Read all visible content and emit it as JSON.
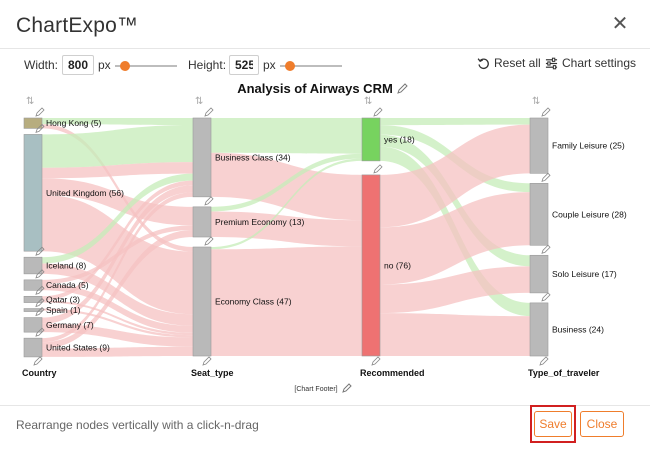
{
  "app": {
    "title": "ChartExpo™"
  },
  "toolbar": {
    "width_label": "Width:",
    "width_value": "800",
    "width_unit": "px",
    "height_label": "Height:",
    "height_value": "525",
    "height_unit": "px",
    "reset_label": "Reset all",
    "settings_label": "Chart settings"
  },
  "chart_data": {
    "type": "sankey",
    "title": "Analysis of Airways CRM",
    "footer": "[Chart Footer]",
    "columns": [
      {
        "name": "Country",
        "nodes": [
          {
            "label": "Hong Kong (5)",
            "value": 5,
            "color": "#b7ad7f"
          },
          {
            "label": "United Kingdom (56)",
            "value": 56,
            "color": "#a8bfc2"
          },
          {
            "label": "Iceland (8)",
            "value": 8,
            "color": "#b9b9b9"
          },
          {
            "label": "Canada (5)",
            "value": 5,
            "color": "#b9b9b9"
          },
          {
            "label": "Qatar (3)",
            "value": 3,
            "color": "#b9b9b9"
          },
          {
            "label": "Spain (1)",
            "value": 1,
            "color": "#b9b9b9"
          },
          {
            "label": "Germany (7)",
            "value": 7,
            "color": "#b9b9b9"
          },
          {
            "label": "United States (9)",
            "value": 9,
            "color": "#b9b9b9"
          }
        ]
      },
      {
        "name": "Seat_type",
        "nodes": [
          {
            "label": "Business Class (34)",
            "value": 34,
            "color": "#b9b9b9"
          },
          {
            "label": "Premium Economy (13)",
            "value": 13,
            "color": "#b9b9b9"
          },
          {
            "label": "Economy Class (47)",
            "value": 47,
            "color": "#b9b9b9"
          }
        ]
      },
      {
        "name": "Recommended",
        "nodes": [
          {
            "label": "yes (18)",
            "value": 18,
            "color": "#77d35f"
          },
          {
            "label": "no (76)",
            "value": 76,
            "color": "#ee7272"
          }
        ]
      },
      {
        "name": "Type_of_traveler",
        "nodes": [
          {
            "label": "Family Leisure (25)",
            "value": 25,
            "color": "#b9b9b9"
          },
          {
            "label": "Couple Leisure (28)",
            "value": 28,
            "color": "#b9b9b9"
          },
          {
            "label": "Solo Leisure (17)",
            "value": 17,
            "color": "#b9b9b9"
          },
          {
            "label": "Business (24)",
            "value": 24,
            "color": "#b9b9b9"
          }
        ]
      }
    ],
    "colors": {
      "yes_flow": "#c6ecb8",
      "no_flow": "#f6c2c2"
    }
  },
  "footer": {
    "hint": "Rearrange nodes vertically with a click-n-drag",
    "save_label": "Save",
    "close_label": "Close"
  },
  "theme": {
    "accent": "#ef7d2c",
    "highlight": "#d12020"
  }
}
